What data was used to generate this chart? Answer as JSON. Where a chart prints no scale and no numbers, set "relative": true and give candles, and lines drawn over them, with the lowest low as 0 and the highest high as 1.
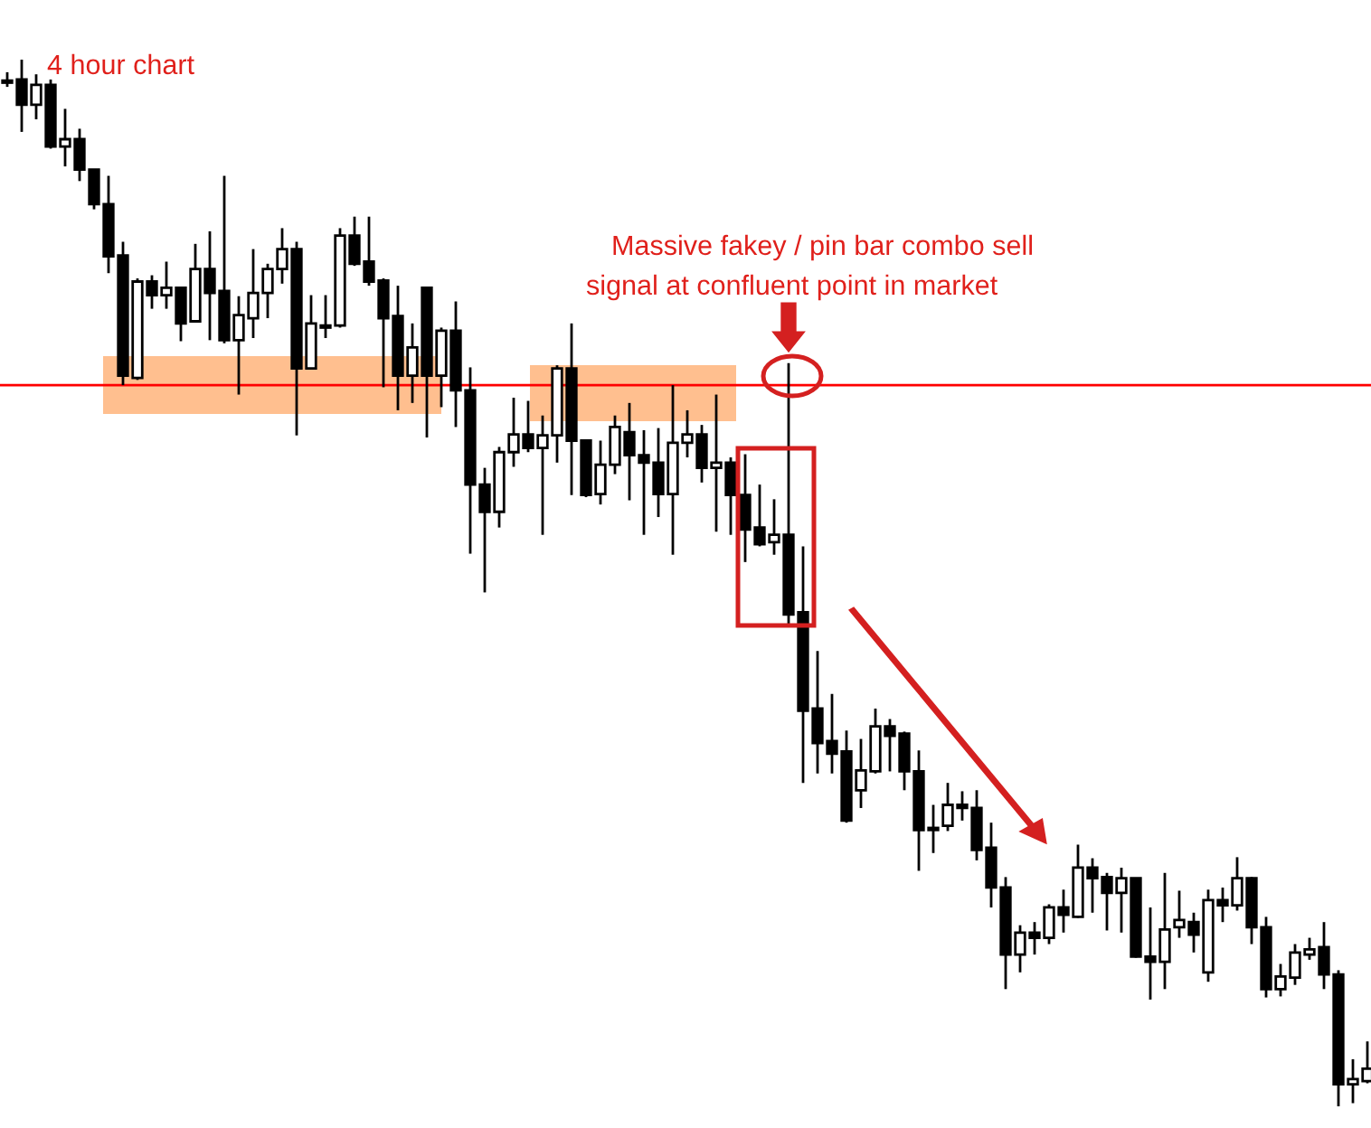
{
  "chart_data": {
    "type": "candlestick",
    "relative": true,
    "categories": [
      null,
      null,
      null,
      null,
      null,
      null,
      null,
      null,
      null,
      null,
      null,
      null,
      null,
      null,
      null,
      null,
      null,
      null,
      null,
      null,
      null,
      null,
      null,
      null,
      null,
      null,
      null,
      null,
      null,
      null,
      null,
      null,
      null,
      null,
      null,
      null,
      null,
      null,
      null,
      null,
      null,
      null,
      null,
      null,
      null,
      null,
      null,
      null,
      null,
      null,
      null,
      null,
      null,
      null,
      null,
      null,
      null,
      null,
      null,
      null,
      null,
      null,
      null,
      null,
      null,
      null,
      null,
      null,
      null,
      null,
      null,
      null,
      null,
      null,
      null,
      null,
      null,
      null,
      null,
      null,
      null,
      null,
      null,
      null,
      null,
      null,
      null,
      null,
      null,
      null,
      null,
      null,
      null,
      null,
      null
    ],
    "ohlc": [
      [
        0.979,
        0.988,
        0.974,
        0.978
      ],
      [
        0.981,
        1,
        0.931,
        0.957
      ],
      [
        0.957,
        0.986,
        0.943,
        0.976
      ],
      [
        0.976,
        0.981,
        0.915,
        0.917
      ],
      [
        0.917,
        0.953,
        0.898,
        0.924
      ],
      [
        0.924,
        0.934,
        0.884,
        0.895
      ],
      [
        0.895,
        0.895,
        0.857,
        0.862
      ],
      [
        0.862,
        0.889,
        0.796,
        0.812
      ],
      [
        0.813,
        0.826,
        0.689,
        0.698
      ],
      [
        0.696,
        0.791,
        0.694,
        0.788
      ],
      [
        0.788,
        0.794,
        0.762,
        0.775
      ],
      [
        0.775,
        0.807,
        0.762,
        0.782
      ],
      [
        0.782,
        0.782,
        0.731,
        0.748
      ],
      [
        0.75,
        0.824,
        0.75,
        0.8
      ],
      [
        0.8,
        0.836,
        0.732,
        0.777
      ],
      [
        0.779,
        0.889,
        0.729,
        0.732
      ],
      [
        0.732,
        0.774,
        0.68,
        0.756
      ],
      [
        0.753,
        0.819,
        0.734,
        0.777
      ],
      [
        0.777,
        0.805,
        0.753,
        0.8
      ],
      [
        0.8,
        0.839,
        0.786,
        0.819
      ],
      [
        0.819,
        0.826,
        0.641,
        0.705
      ],
      [
        0.705,
        0.775,
        0.705,
        0.748
      ],
      [
        0.746,
        0.775,
        0.734,
        0.744
      ],
      [
        0.746,
        0.839,
        0.744,
        0.832
      ],
      [
        0.832,
        0.85,
        0.803,
        0.805
      ],
      [
        0.807,
        0.85,
        0.784,
        0.788
      ],
      [
        0.789,
        0.791,
        0.687,
        0.753
      ],
      [
        0.755,
        0.784,
        0.665,
        0.698
      ],
      [
        0.698,
        0.748,
        0.672,
        0.725
      ],
      [
        0.782,
        0.782,
        0.639,
        0.698
      ],
      [
        0.698,
        0.744,
        0.668,
        0.741
      ],
      [
        0.741,
        0.769,
        0.649,
        0.684
      ],
      [
        0.684,
        0.706,
        0.528,
        0.594
      ],
      [
        0.594,
        0.61,
        0.491,
        0.568
      ],
      [
        0.568,
        0.63,
        0.553,
        0.625
      ],
      [
        0.625,
        0.677,
        0.611,
        0.642
      ],
      [
        0.642,
        0.674,
        0.625,
        0.629
      ],
      [
        0.629,
        0.66,
        0.546,
        0.641
      ],
      [
        0.641,
        0.708,
        0.615,
        0.705
      ],
      [
        0.705,
        0.748,
        0.584,
        0.636
      ],
      [
        0.636,
        0.637,
        0.582,
        0.584
      ],
      [
        0.585,
        0.636,
        0.575,
        0.613
      ],
      [
        0.613,
        0.66,
        0.604,
        0.649
      ],
      [
        0.644,
        0.672,
        0.579,
        0.622
      ],
      [
        0.622,
        0.646,
        0.546,
        0.615
      ],
      [
        0.615,
        0.648,
        0.563,
        0.585
      ],
      [
        0.585,
        0.689,
        0.527,
        0.634
      ],
      [
        0.634,
        0.665,
        0.62,
        0.642
      ],
      [
        0.642,
        0.651,
        0.596,
        0.61
      ],
      [
        0.61,
        0.68,
        0.549,
        0.615
      ],
      [
        0.615,
        0.62,
        0.546,
        0.584
      ],
      [
        0.584,
        0.623,
        0.52,
        0.551
      ],
      [
        0.553,
        0.594,
        0.535,
        0.537
      ],
      [
        0.539,
        0.58,
        0.527,
        0.546
      ],
      [
        0.546,
        0.71,
        0.458,
        0.47
      ],
      [
        0.472,
        0.535,
        0.309,
        0.378
      ],
      [
        0.38,
        0.435,
        0.318,
        0.347
      ],
      [
        0.349,
        0.394,
        0.318,
        0.337
      ],
      [
        0.339,
        0.359,
        0.271,
        0.273
      ],
      [
        0.302,
        0.351,
        0.285,
        0.321
      ],
      [
        0.32,
        0.38,
        0.318,
        0.363
      ],
      [
        0.363,
        0.37,
        0.32,
        0.354
      ],
      [
        0.356,
        0.358,
        0.302,
        0.32
      ],
      [
        0.32,
        0.34,
        0.225,
        0.264
      ],
      [
        0.266,
        0.288,
        0.242,
        0.264
      ],
      [
        0.268,
        0.309,
        0.263,
        0.288
      ],
      [
        0.288,
        0.301,
        0.273,
        0.285
      ],
      [
        0.285,
        0.302,
        0.235,
        0.245
      ],
      [
        0.247,
        0.271,
        0.19,
        0.209
      ],
      [
        0.209,
        0.219,
        0.112,
        0.145
      ],
      [
        0.145,
        0.173,
        0.128,
        0.166
      ],
      [
        0.166,
        0.176,
        0.145,
        0.161
      ],
      [
        0.161,
        0.193,
        0.155,
        0.19
      ],
      [
        0.19,
        0.207,
        0.166,
        0.183
      ],
      [
        0.181,
        0.25,
        0.18,
        0.228
      ],
      [
        0.228,
        0.237,
        0.185,
        0.218
      ],
      [
        0.219,
        0.223,
        0.168,
        0.204
      ],
      [
        0.204,
        0.228,
        0.166,
        0.218
      ],
      [
        0.218,
        0.218,
        0.142,
        0.143
      ],
      [
        0.143,
        0.19,
        0.102,
        0.138
      ],
      [
        0.138,
        0.223,
        0.112,
        0.169
      ],
      [
        0.171,
        0.206,
        0.161,
        0.178
      ],
      [
        0.176,
        0.185,
        0.147,
        0.164
      ],
      [
        0.128,
        0.207,
        0.119,
        0.197
      ],
      [
        0.197,
        0.209,
        0.176,
        0.192
      ],
      [
        0.192,
        0.238,
        0.187,
        0.218
      ],
      [
        0.218,
        0.219,
        0.155,
        0.171
      ],
      [
        0.171,
        0.181,
        0.104,
        0.112
      ],
      [
        0.112,
        0.136,
        0.105,
        0.124
      ],
      [
        0.123,
        0.155,
        0.116,
        0.147
      ],
      [
        0.145,
        0.161,
        0.14,
        0.15
      ],
      [
        0.152,
        0.176,
        0.112,
        0.126
      ],
      [
        0.126,
        0.13,
        0,
        0.021
      ],
      [
        0.021,
        0.045,
        0.003,
        0.026
      ],
      [
        0.024,
        0.062,
        0.022,
        0.036
      ]
    ],
    "ref_lines": [
      {
        "axis": "y",
        "value": 0.689,
        "color": "#ff0000"
      }
    ],
    "annotations": [
      "4 hour chart",
      "Massive fakey / pin bar combo sell",
      "signal at confluent point in market"
    ]
  }
}
